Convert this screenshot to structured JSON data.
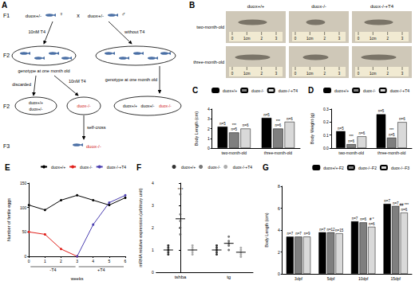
{
  "diagram": {
    "label": "A",
    "generations": [
      "F1",
      "F2",
      "F2",
      "F3"
    ],
    "parents": {
      "female": "♀",
      "male": "♂",
      "cross": "x",
      "genotype": "duox+/-"
    },
    "treatments": {
      "with": "10nM T4",
      "without": "without T4",
      "later": "10nM T4"
    },
    "genotyping": "genotype at one month old",
    "discarded": "discarded",
    "self_cross": "self-cross",
    "genotypes": {
      "wild": "duox+/+",
      "het": "duox+/-",
      "mut": "duox-/-"
    }
  },
  "photos": {
    "label": "B",
    "columns": [
      "duox+/+",
      "duox-/-",
      "duox-/-+T4"
    ],
    "rows": [
      "two-month-old",
      "three-month-old"
    ],
    "ruler": [
      "0",
      "1cm",
      "2",
      "3"
    ]
  },
  "chart_data": [
    {
      "label": "C",
      "type": "bar",
      "y_label": "Body Length (cm)",
      "categories": [
        "two-month-old",
        "three-month-old"
      ],
      "series": [
        {
          "name": "duox+/+",
          "color": "#000000",
          "values": [
            2.2,
            3.1
          ],
          "n_labels": [
            "n=5",
            "n=5"
          ],
          "marks": [
            null,
            null
          ]
        },
        {
          "name": "duox-/-",
          "color": "#7f7f7f",
          "values": [
            1.6,
            2.0
          ],
          "n_labels": [
            "n=5",
            "n=6"
          ],
          "marks": [
            "***",
            "***"
          ]
        },
        {
          "name": "duox-/-+T4",
          "color": "#d9d9d9",
          "values": [
            2.0,
            2.7
          ],
          "n_labels": [
            "n=6",
            "n=6"
          ],
          "marks": [
            null,
            null
          ]
        }
      ],
      "ylim": [
        0,
        4
      ],
      "yticks": [
        0,
        1,
        2,
        3,
        4
      ],
      "grid": false,
      "legend": "top-right"
    },
    {
      "label": "D",
      "type": "bar",
      "y_label": "Body Weight (g)",
      "categories": [
        "two-month-old",
        "three-month-old"
      ],
      "series": [
        {
          "name": "duox+/+",
          "color": "#000000",
          "values": [
            0.13,
            0.26
          ],
          "n_labels": [
            "n=5",
            "n=5"
          ],
          "marks": [
            null,
            null
          ]
        },
        {
          "name": "duox-/-",
          "color": "#7f7f7f",
          "values": [
            0.03,
            0.08
          ],
          "n_labels": [
            "n=6",
            "n=5"
          ],
          "marks": [
            "***",
            "***"
          ]
        },
        {
          "name": "duox-/-+T4",
          "color": "#d9d9d9",
          "values": [
            0.09,
            0.2
          ],
          "n_labels": [
            "n=6",
            "n=6"
          ],
          "marks": [
            null,
            null
          ]
        }
      ],
      "ylim": [
        0,
        0.3
      ],
      "yticks": [
        {
          "value": 0,
          "label": "0.0"
        },
        0.1,
        0.2,
        0.3
      ],
      "grid": false,
      "legend": "top-right"
    },
    {
      "label": "E",
      "type": "line",
      "x_label": "weeks",
      "y_label": "Number of fertile eggs",
      "x": [
        0,
        1,
        2,
        3,
        4,
        5,
        6
      ],
      "series": [
        {
          "name": "duox+/+",
          "color": "#000000",
          "marker": "circle",
          "line_style": "solid",
          "values": [
            105,
            95,
            115,
            125,
            115,
            105,
            120
          ]
        },
        {
          "name": "duox-/-",
          "color": "#e0201b",
          "marker": "circle",
          "line_style": "solid",
          "values": [
            50,
            45,
            15,
            0,
            null,
            null,
            null
          ]
        },
        {
          "name": "duox-/-+T4",
          "color": "#4b3fb0",
          "marker": "circle",
          "line_style": "solid",
          "values": [
            null,
            null,
            null,
            0,
            65,
            110,
            125
          ]
        }
      ],
      "phases": [
        {
          "text": "-T4",
          "from": 0,
          "to": 3
        },
        {
          "text": "+T4",
          "from": 3,
          "to": 6
        }
      ],
      "xlim": [
        0,
        6
      ],
      "xticks": [
        0,
        1,
        2,
        3,
        4,
        5,
        6
      ],
      "ylim": [
        0,
        150
      ],
      "yticks": [
        0,
        50,
        100,
        150
      ],
      "grid": false,
      "legend": "top-right"
    },
    {
      "label": "F",
      "type": "scatter",
      "y_label": "mRNA relative expression (arbitrary unit)",
      "categories": [
        "tshba",
        "tg"
      ],
      "series": [
        {
          "name": "duox+/+",
          "color": "#000000",
          "marker": "circle",
          "points": [
            [
              0.8,
              1.0,
              1.1,
              1.2,
              0.9
            ],
            [
              0.9,
              1.0,
              1.1,
              0.8,
              1.2
            ]
          ],
          "means": [
            1.0,
            1.0
          ],
          "marks": [
            null,
            null
          ]
        },
        {
          "name": "duox-/-",
          "color": "#555555",
          "marker": "circle",
          "points": [
            [
              1.7,
              2.0,
              2.3,
              2.6,
              3.5
            ],
            [
              1.0,
              1.2,
              1.4,
              1.6,
              1.3
            ]
          ],
          "means": [
            2.4,
            1.3
          ],
          "marks": [
            "***",
            null
          ]
        },
        {
          "name": "duox-/-+T4",
          "color": "#999999",
          "marker": "circle",
          "points": [
            [
              0.9,
              1.0,
              1.1,
              1.2,
              0.8
            ],
            [
              0.7,
              0.8,
              0.9,
              1.0,
              1.1
            ]
          ],
          "means": [
            1.0,
            0.9
          ],
          "marks": [
            null,
            null
          ]
        }
      ],
      "ylim": [
        0,
        4
      ],
      "yticks": [
        0,
        1,
        2,
        3,
        4
      ],
      "grid": false,
      "legend": "top-right"
    },
    {
      "label": "G",
      "type": "bar",
      "y_label": "Body Length (cm)",
      "categories": [
        "3dpf",
        "5dpf",
        "10dpf",
        "15dpf"
      ],
      "series": [
        {
          "name": "duox+/+-F2",
          "color": "#000000",
          "values": [
            3.4,
            3.8,
            4.8,
            6.4
          ],
          "n_labels": [
            "n=7",
            "n=7",
            "n=7",
            "n=7"
          ],
          "marks": [
            null,
            null,
            null,
            null
          ]
        },
        {
          "name": "duox-/--F2",
          "color": "#7f7f7f",
          "values": [
            3.4,
            3.8,
            4.7,
            6.2
          ],
          "n_labels": [
            "n=7",
            "n=12",
            "n=6",
            "n=7"
          ],
          "marks": [
            null,
            null,
            null,
            null
          ]
        },
        {
          "name": "duox-/--F3",
          "color": "#d9d9d9",
          "values": [
            3.4,
            3.7,
            4.3,
            5.6
          ],
          "n_labels": [
            "n=9",
            "n=15",
            "n=6",
            "n=6"
          ],
          "marks": [
            null,
            null,
            "# *",
            "## ***"
          ]
        }
      ],
      "ylim": [
        0,
        8
      ],
      "yticks": [
        0,
        2,
        4,
        6,
        8
      ],
      "grid": false,
      "legend": "top-right"
    }
  ]
}
